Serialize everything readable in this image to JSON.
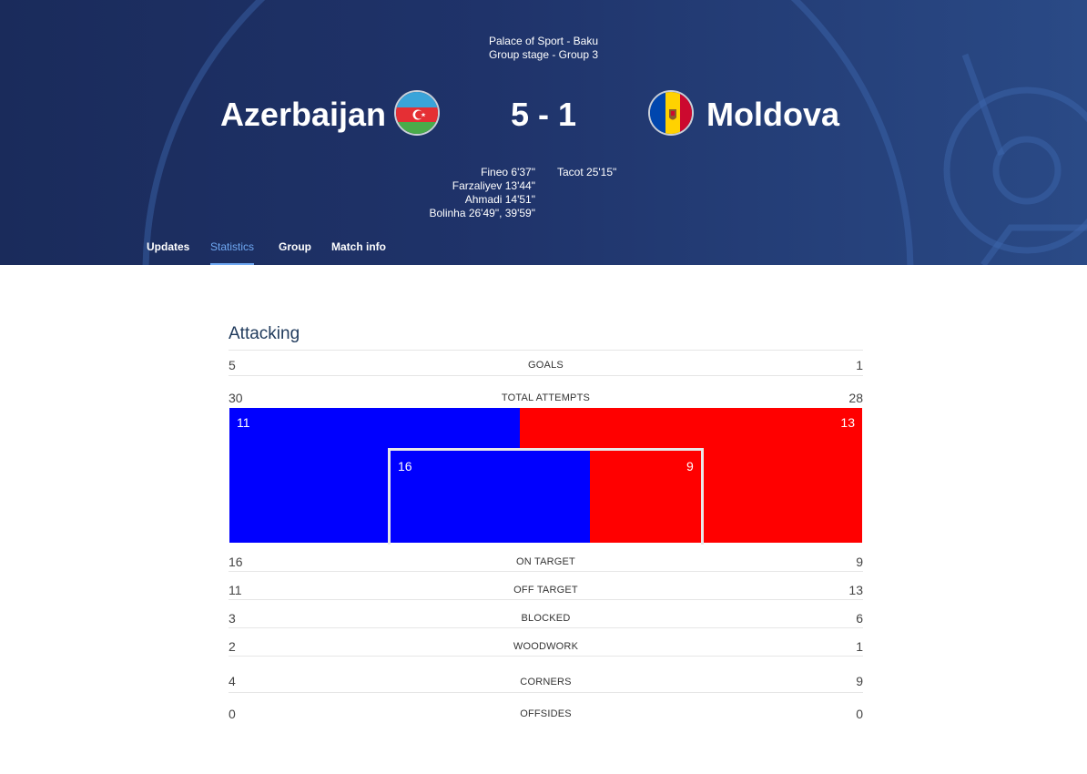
{
  "match": {
    "venue": "Palace of Sport - Baku",
    "stage": "Group stage - Group 3",
    "home": {
      "name": "Azerbaijan",
      "score": 5
    },
    "away": {
      "name": "Moldova",
      "score": 1
    },
    "score_text": "5 - 1",
    "home_scorers": [
      "Fineo 6'37\"",
      "Farzaliyev 13'44\"",
      "Ahmadi 14'51\"",
      "Bolinha 26'49\", 39'59\""
    ],
    "away_scorers": [
      "Tacot 25'15\""
    ]
  },
  "tabs": [
    {
      "label": "Updates",
      "active": false
    },
    {
      "label": "Statistics",
      "active": true
    },
    {
      "label": "Group",
      "active": false
    },
    {
      "label": "Match info",
      "active": false
    }
  ],
  "section": {
    "title": "Attacking"
  },
  "colors": {
    "home": "#0000ff",
    "away": "#ff0000",
    "accent": "#6fa8f2"
  },
  "stats": [
    {
      "label": "GOALS",
      "home": "5",
      "away": "1"
    },
    {
      "label": "TOTAL ATTEMPTS",
      "home": "30",
      "away": "28"
    },
    {
      "label": "ON TARGET",
      "home": "16",
      "away": "9"
    },
    {
      "label": "OFF TARGET",
      "home": "11",
      "away": "13"
    },
    {
      "label": "BLOCKED",
      "home": "3",
      "away": "6"
    },
    {
      "label": "WOODWORK",
      "home": "2",
      "away": "1"
    },
    {
      "label": "CORNERS",
      "home": "4",
      "away": "9"
    },
    {
      "label": "OFFSIDES",
      "home": "0",
      "away": "0"
    }
  ],
  "attempts_graphic": {
    "off_target": {
      "home": 11,
      "away": 13
    },
    "on_target": {
      "home": 16,
      "away": 9
    }
  }
}
